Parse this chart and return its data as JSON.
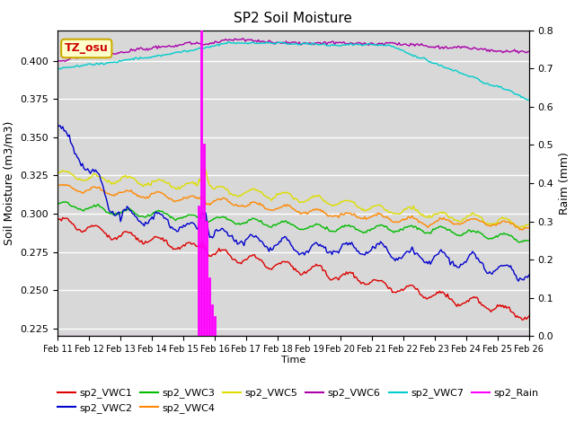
{
  "title": "SP2 Soil Moisture",
  "xlabel": "Time",
  "ylabel_left": "Soil Moisture (m3/m3)",
  "ylabel_right": "Raim (mm)",
  "ylim_left": [
    0.22,
    0.42
  ],
  "ylim_right": [
    0.0,
    0.8
  ],
  "background_color": "#d8d8d8",
  "date_start": 0,
  "date_end": 360,
  "xtick_labels": [
    "Feb 11",
    "Feb 12",
    "Feb 13",
    "Feb 14",
    "Feb 15",
    "Feb 16",
    "Feb 17",
    "Feb 18",
    "Feb 19",
    "Feb 20",
    "Feb 21",
    "Feb 22",
    "Feb 23",
    "Feb 24",
    "Feb 25",
    "Feb 26"
  ],
  "annotation_text": "TZ_osu",
  "annotation_color": "#cc0000",
  "annotation_bg": "#ffffcc",
  "annotation_border": "#ccaa00",
  "series_colors": {
    "sp2_VWC1": "#dd0000",
    "sp2_VWC2": "#0000cc",
    "sp2_VWC3": "#00bb00",
    "sp2_VWC4": "#ff8800",
    "sp2_VWC5": "#dddd00",
    "sp2_VWC6": "#aa00aa",
    "sp2_VWC7": "#00cccc",
    "sp2_Rain": "#ff00ff"
  }
}
